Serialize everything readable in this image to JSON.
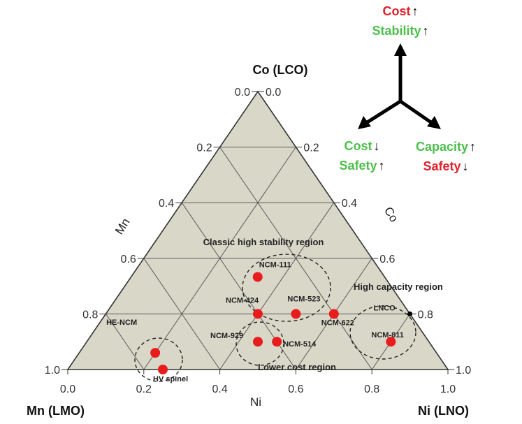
{
  "chart_data": {
    "type": "scatter",
    "subtype": "ternary",
    "vertices": {
      "top": "Co (LCO)",
      "left": "Mn (LMO)",
      "right": "Ni (LNO)"
    },
    "axis_labels": {
      "left": "Mn",
      "right": "Co",
      "bottom": "Ni"
    },
    "left_ticks": [
      "0.0",
      "0.2",
      "0.4",
      "0.6",
      "0.8",
      "1.0"
    ],
    "right_ticks": [
      "1.0",
      "0.8",
      "0.6",
      "0.4",
      "0.2",
      "0.0"
    ],
    "bottom_ticks": [
      "0.0",
      "0.2",
      "0.4",
      "0.6",
      "0.8",
      "1.0"
    ],
    "points": [
      {
        "label": "NCM-111",
        "ni": 0.333,
        "mn": 0.333,
        "co": 0.333
      },
      {
        "label": "NCM-424",
        "ni": 0.4,
        "mn": 0.4,
        "co": 0.2
      },
      {
        "label": "NCM-523",
        "ni": 0.5,
        "mn": 0.3,
        "co": 0.2
      },
      {
        "label": "NCM-622",
        "ni": 0.6,
        "mn": 0.2,
        "co": 0.2
      },
      {
        "label": "NCM-929",
        "ni": 0.45,
        "mn": 0.45,
        "co": 0.1
      },
      {
        "label": "NCM-514",
        "ni": 0.5,
        "mn": 0.4,
        "co": 0.1
      },
      {
        "label": "NCM-811",
        "ni": 0.8,
        "mn": 0.1,
        "co": 0.1
      },
      {
        "label": "HE-NCM",
        "ni": 0.2,
        "mn": 0.74,
        "co": 0.06
      },
      {
        "label": "HV spinel",
        "ni": 0.25,
        "mn": 0.75,
        "co": 0.0
      },
      {
        "label": "LNCO",
        "ni": 0.8,
        "mn": 0.0,
        "co": 0.2,
        "marker": "small-black"
      }
    ],
    "regions": [
      {
        "label": "Classic high stability region"
      },
      {
        "label": "High capacity region"
      },
      {
        "label": "Lower cost region"
      }
    ],
    "key": {
      "up": [
        {
          "text": "Cost",
          "arrow": "up",
          "color": "#e0202a"
        },
        {
          "text": "Stability",
          "arrow": "up",
          "color": "#4cc04a"
        }
      ],
      "left": [
        {
          "text": "Cost",
          "arrow": "down",
          "color": "#4cc04a"
        },
        {
          "text": "Safety",
          "arrow": "up",
          "color": "#4cc04a"
        }
      ],
      "right": [
        {
          "text": "Capacity",
          "arrow": "up",
          "color": "#4cc04a"
        },
        {
          "text": "Safety",
          "arrow": "down",
          "color": "#e0202a"
        }
      ]
    },
    "colors": {
      "fill": "#d9d8c8",
      "grid": "#5a5a5a",
      "point": "#e81c1c",
      "frame": "#333333"
    }
  }
}
